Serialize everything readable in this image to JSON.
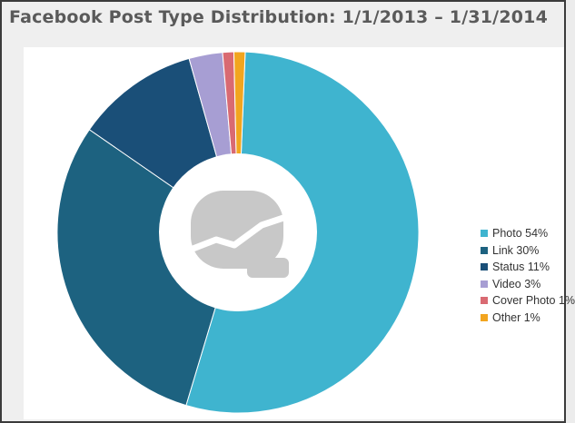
{
  "page": {
    "title": "Facebook Post Type Distribution: 1/1/2013 – 1/31/2014"
  },
  "chart_data": {
    "type": "pie",
    "variant": "donut",
    "title": "Facebook Post Type Distribution: 1/1/2013 – 1/31/2014",
    "legend_position": "right",
    "center_icon": "chart-logo-icon",
    "slices": [
      {
        "name": "Photo",
        "value": 54,
        "label": "Photo 54%",
        "color": "#3fb4cf"
      },
      {
        "name": "Link",
        "value": 30,
        "label": "Link 30%",
        "color": "#1d6280"
      },
      {
        "name": "Status",
        "value": 11,
        "label": "Status 11%",
        "color": "#1a4f78"
      },
      {
        "name": "Video",
        "value": 3,
        "label": "Video 3%",
        "color": "#a79ed3"
      },
      {
        "name": "Cover Photo",
        "value": 1,
        "label": "Cover Photo 1%",
        "color": "#d96a72"
      },
      {
        "name": "Other",
        "value": 1,
        "label": "Other 1%",
        "color": "#f2a51f"
      }
    ]
  }
}
